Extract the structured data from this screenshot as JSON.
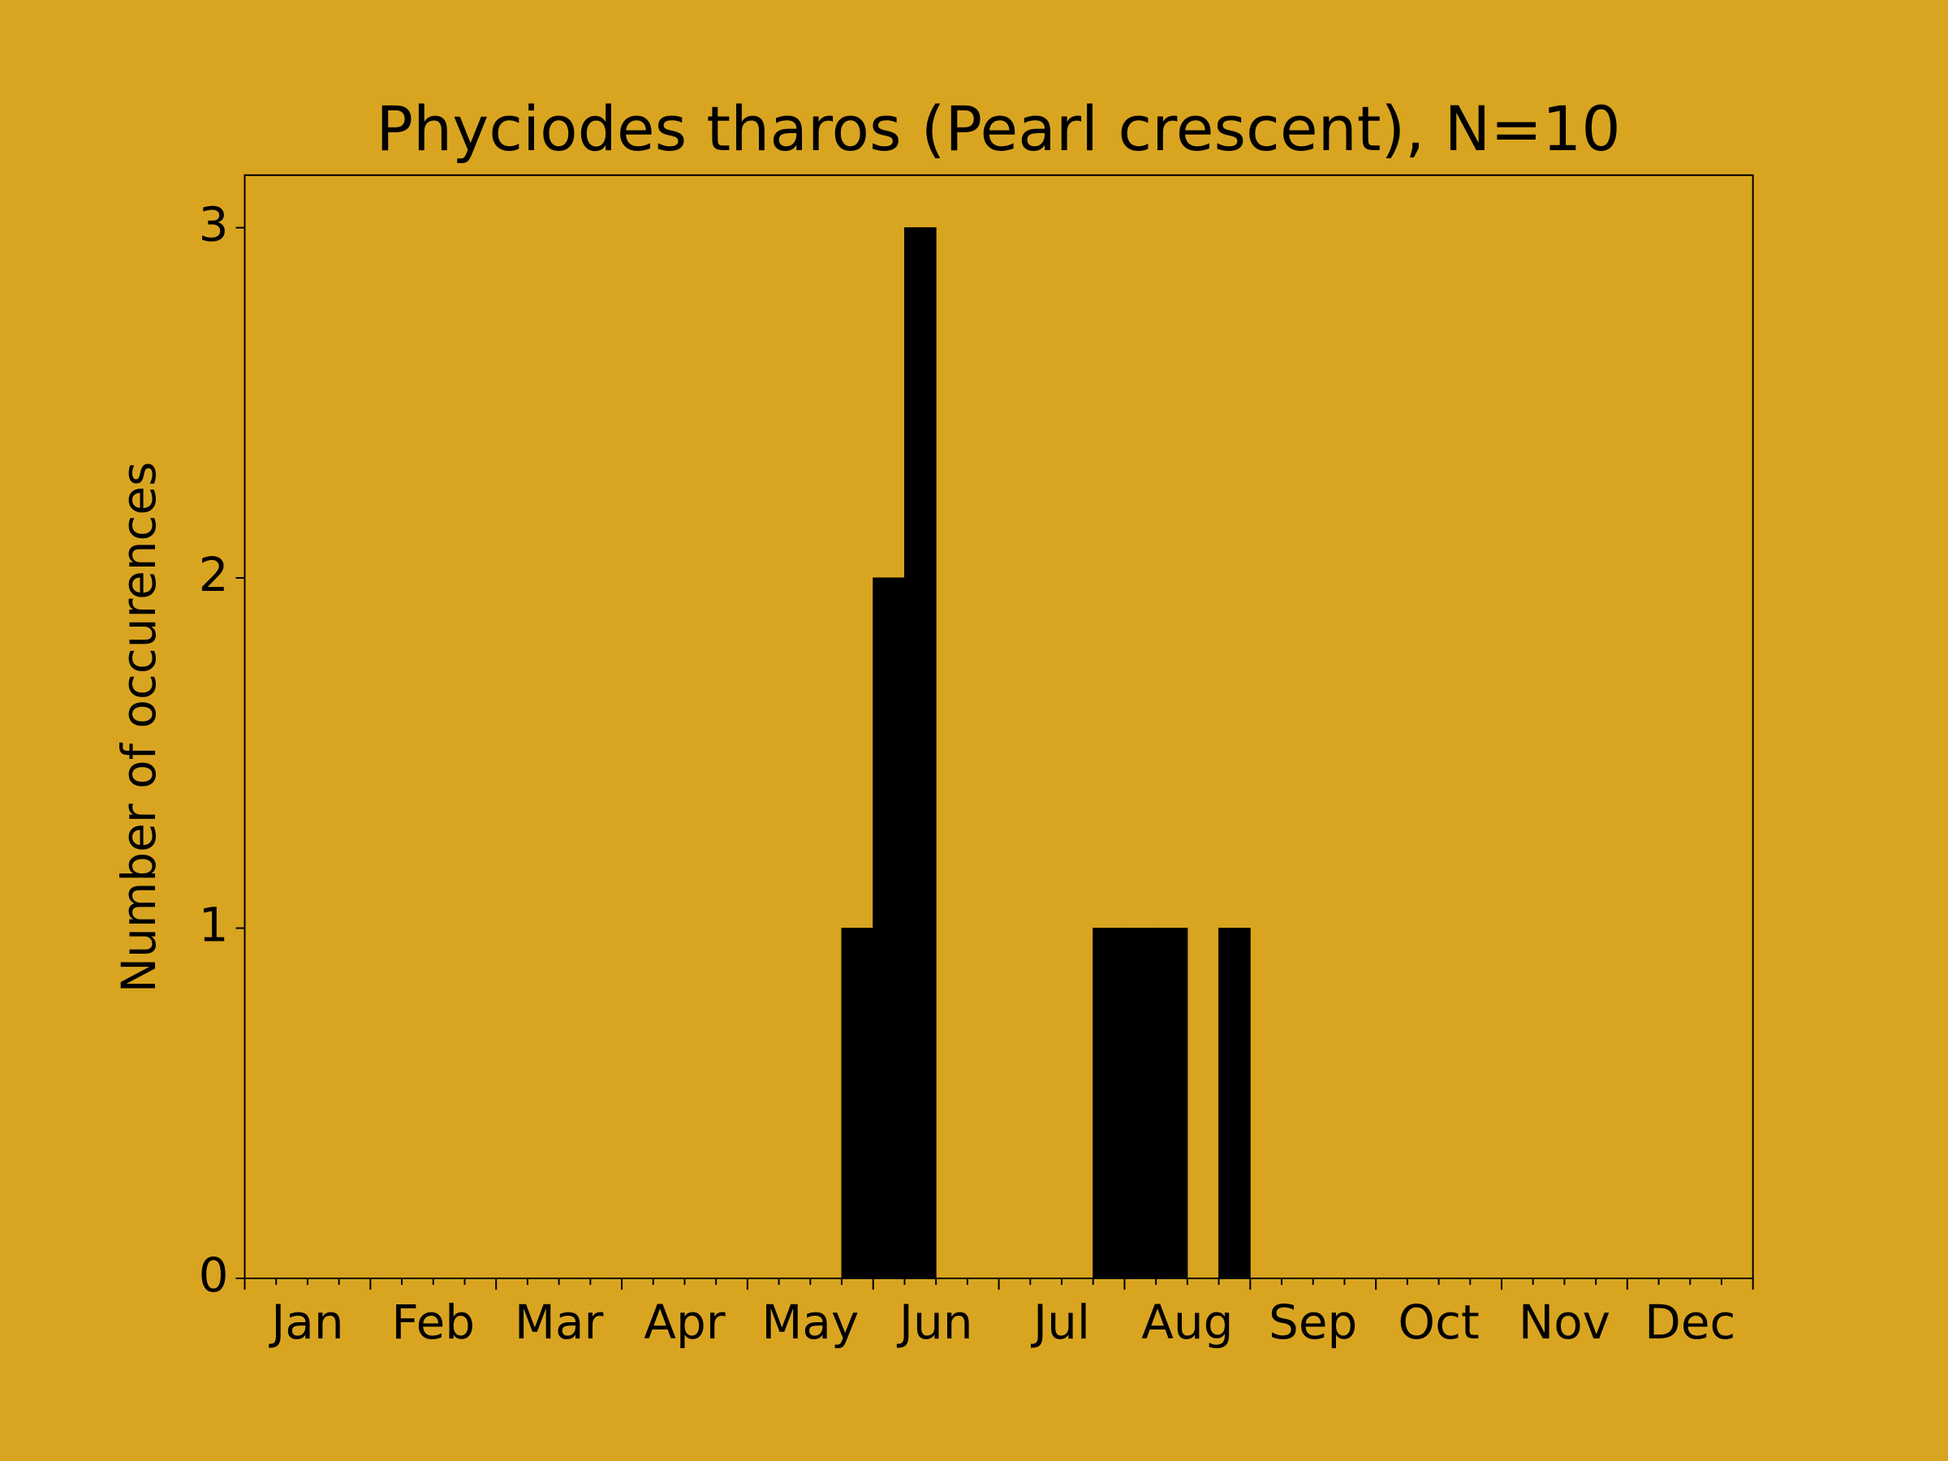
{
  "chart_data": {
    "type": "histogram",
    "title": "Phyciodes tharos (Pearl crescent), N=10",
    "ylabel": "Number of occurences",
    "bins": [
      0,
      1,
      2,
      3,
      4,
      5,
      6,
      7,
      8,
      9,
      10,
      11,
      12,
      13,
      14,
      15,
      16,
      17,
      18,
      19,
      20,
      21,
      22,
      23,
      24,
      25,
      26,
      27,
      28,
      29,
      30,
      31,
      32,
      33,
      34,
      35,
      36,
      37,
      38,
      39,
      40,
      41,
      42,
      43,
      44,
      45,
      46,
      47,
      48
    ],
    "values": [
      0,
      0,
      0,
      0,
      0,
      0,
      0,
      0,
      0,
      0,
      0,
      0,
      0,
      0,
      0,
      0,
      0,
      0,
      0,
      1,
      2,
      3,
      0,
      0,
      0,
      0,
      0,
      1,
      1,
      1,
      0,
      1,
      0,
      0,
      0,
      0,
      0,
      0,
      0,
      0,
      0,
      0,
      0,
      0,
      0,
      0,
      0,
      0
    ],
    "color": "#000000",
    "background": "#d9a521",
    "xlim": [
      0,
      48
    ],
    "xticks": [
      {
        "value": 2,
        "label": "Jan"
      },
      {
        "value": 6,
        "label": "Feb"
      },
      {
        "value": 10,
        "label": "Mar"
      },
      {
        "value": 14,
        "label": "Apr"
      },
      {
        "value": 18,
        "label": "May"
      },
      {
        "value": 22,
        "label": "Jun"
      },
      {
        "value": 26,
        "label": "Jul"
      },
      {
        "value": 30,
        "label": "Aug"
      },
      {
        "value": 34,
        "label": "Sep"
      },
      {
        "value": 38,
        "label": "Oct"
      },
      {
        "value": 42,
        "label": "Nov"
      },
      {
        "value": 46,
        "label": "Dec"
      }
    ],
    "ylim": [
      0,
      3.15
    ],
    "yticks": [
      0,
      1,
      2,
      3
    ]
  }
}
